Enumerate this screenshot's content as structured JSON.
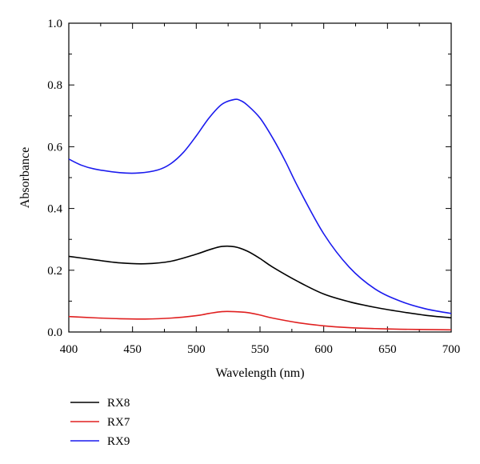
{
  "chart_data": {
    "type": "line",
    "title": "",
    "xlabel": "Wavelength (nm)",
    "ylabel": "Absorbance",
    "xlim": [
      400,
      700
    ],
    "ylim": [
      0.0,
      1.0
    ],
    "x_ticks": [
      400,
      450,
      500,
      550,
      600,
      650,
      700
    ],
    "x_tick_labels": [
      "400",
      "450",
      "500",
      "550",
      "600",
      "650",
      "700"
    ],
    "y_ticks": [
      0.0,
      0.2,
      0.4,
      0.6,
      0.8,
      1.0
    ],
    "y_tick_labels": [
      "0.0",
      "0.2",
      "0.4",
      "0.6",
      "0.8",
      "1.0"
    ],
    "grid": false,
    "legend_position": "below-left",
    "series": [
      {
        "name": "RX8",
        "color": "#000000",
        "x": [
          400,
          420,
          440,
          460,
          480,
          500,
          510,
          520,
          530,
          540,
          550,
          560,
          580,
          600,
          620,
          640,
          660,
          680,
          700
        ],
        "y": [
          0.245,
          0.234,
          0.224,
          0.221,
          0.229,
          0.252,
          0.266,
          0.277,
          0.276,
          0.262,
          0.238,
          0.21,
          0.163,
          0.123,
          0.098,
          0.08,
          0.066,
          0.054,
          0.046
        ]
      },
      {
        "name": "RX7",
        "color": "#e02020",
        "x": [
          400,
          420,
          440,
          460,
          480,
          500,
          510,
          520,
          530,
          540,
          550,
          560,
          580,
          600,
          620,
          640,
          660,
          680,
          700
        ],
        "y": [
          0.05,
          0.046,
          0.043,
          0.042,
          0.045,
          0.053,
          0.06,
          0.066,
          0.066,
          0.063,
          0.055,
          0.045,
          0.03,
          0.02,
          0.014,
          0.011,
          0.009,
          0.008,
          0.007
        ]
      },
      {
        "name": "RX9",
        "color": "#1a1aee",
        "x": [
          400,
          410,
          420,
          440,
          455,
          470,
          480,
          490,
          500,
          510,
          520,
          530,
          535,
          540,
          550,
          560,
          570,
          580,
          600,
          620,
          640,
          660,
          680,
          700
        ],
        "y": [
          0.56,
          0.54,
          0.528,
          0.516,
          0.515,
          0.525,
          0.545,
          0.582,
          0.635,
          0.693,
          0.737,
          0.753,
          0.749,
          0.735,
          0.693,
          0.628,
          0.552,
          0.468,
          0.318,
          0.21,
          0.14,
          0.1,
          0.075,
          0.06
        ]
      }
    ]
  }
}
